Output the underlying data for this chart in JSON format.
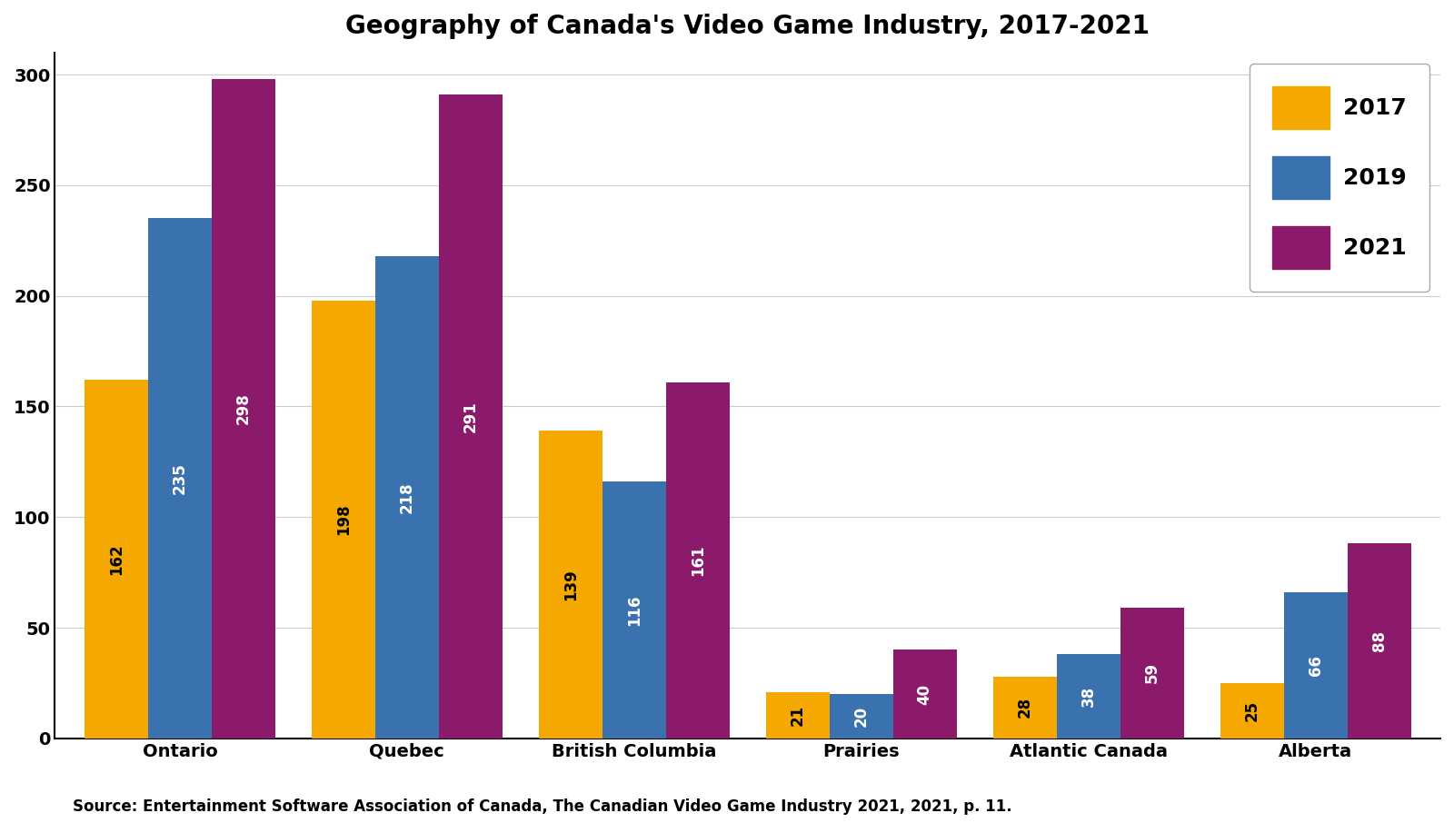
{
  "title": "Geography of Canada's Video Game Industry, 2017-2021",
  "categories": [
    "Ontario",
    "Quebec",
    "British Columbia",
    "Prairies",
    "Atlantic Canada",
    "Alberta"
  ],
  "series": {
    "2017": [
      162,
      198,
      139,
      21,
      28,
      25
    ],
    "2019": [
      235,
      218,
      116,
      20,
      38,
      66
    ],
    "2021": [
      298,
      291,
      161,
      40,
      59,
      88
    ]
  },
  "colors": {
    "2017": "#F5A800",
    "2019": "#3A72B0",
    "2021": "#8B1A6B"
  },
  "label_text_colors": {
    "2017": "#000000",
    "2019": "#FFFFFF",
    "2021": "#FFFFFF"
  },
  "ylim": [
    0,
    310
  ],
  "yticks": [
    0,
    50,
    100,
    150,
    200,
    250,
    300
  ],
  "bar_width": 0.28,
  "label_fontsize": 12,
  "title_fontsize": 20,
  "tick_fontsize": 14,
  "legend_fontsize": 18,
  "source_text": "Source: Entertainment Software Association of Canada, The Canadian Video Game Industry 2021, 2021, p. 11.",
  "source_fontsize": 12,
  "background_color": "#FFFFFF",
  "grid_color": "#CCCCCC"
}
